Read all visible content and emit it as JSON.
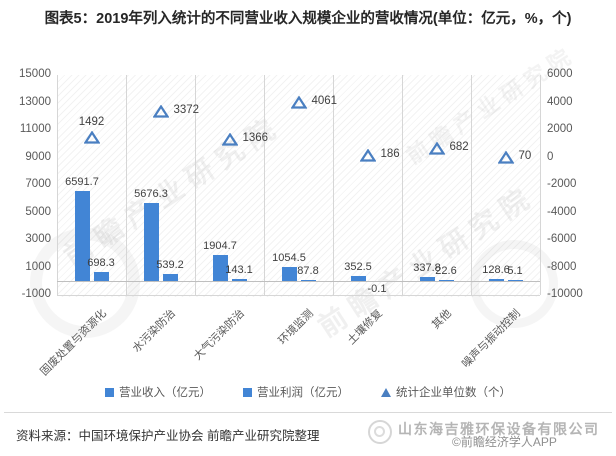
{
  "title": "图表5：2019年列入统计的不同营业收入规模企业的营收情况(单位：亿元，%，个)",
  "source_note": "资料来源：中国环境保护产业协会 前瞻产业研究院整理",
  "watermarks": {
    "brand": "前瞻产业研究院",
    "company": "山东海吉雅环保设备有限公司",
    "copyright": "©前瞻经济学人APP"
  },
  "colors": {
    "bar": "#4285d5",
    "marker_stroke": "#4a7fc1",
    "axis_text": "#595959",
    "value_label": "#3f3f3f",
    "grid": "#d6d6d6"
  },
  "chart_data": {
    "type": "bar",
    "subtype": "clustered bars on left axis + triangle scatter on right axis",
    "categories": [
      "固废处置与资源化",
      "水污染防治",
      "大气污染防治",
      "环境监测",
      "土壤修复",
      "其他",
      "噪声与振动控制"
    ],
    "series": [
      {
        "name": "营业收入（亿元）",
        "type": "bar",
        "axis": "left",
        "values": [
          6591.7,
          5676.3,
          1904.7,
          1054.5,
          352.5,
          337.8,
          128.6
        ]
      },
      {
        "name": "营业利润（亿元）",
        "type": "bar",
        "axis": "left",
        "values": [
          698.3,
          539.2,
          143.1,
          87.8,
          -0.1,
          22.6,
          5.1
        ]
      },
      {
        "name": "统计企业单位数（个）",
        "type": "scatter",
        "marker": "hollow-triangle",
        "axis": "right",
        "values": [
          1492,
          3372,
          1366,
          4061,
          186,
          682,
          70
        ]
      }
    ],
    "left_axis": {
      "min": -1000,
      "max": 15000,
      "ticks": [
        "15000",
        "13000",
        "11000",
        "9000",
        "7000",
        "5000",
        "3000",
        "1000",
        "-1000"
      ]
    },
    "right_axis": {
      "min": -10000,
      "max": 6000,
      "ticks": [
        "6000",
        "4000",
        "2000",
        "0",
        "-2000",
        "-4000",
        "-6000",
        "-8000",
        "-10000"
      ]
    },
    "grid": "vertical category separators only",
    "legend_position": "bottom"
  }
}
